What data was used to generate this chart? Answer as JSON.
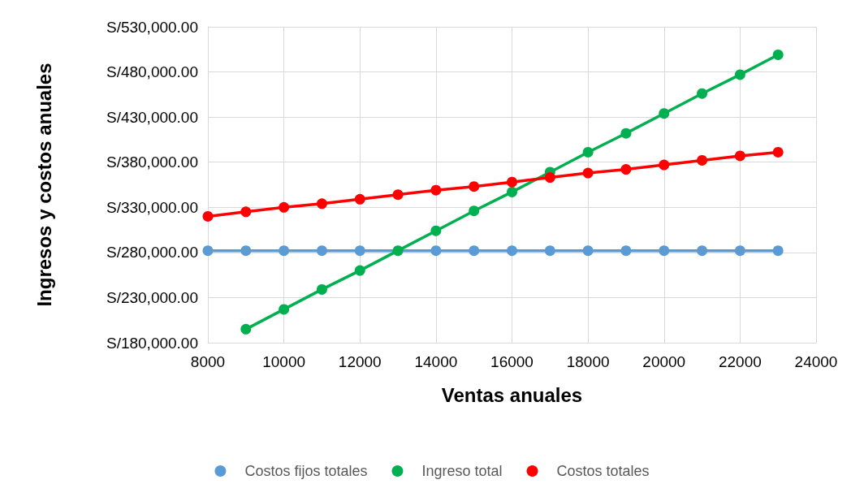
{
  "chart_data": {
    "type": "line",
    "xlabel": "Ventas anuales",
    "ylabel": "Ingresos y costos anuales",
    "x": [
      8000,
      9000,
      10000,
      11000,
      12000,
      13000,
      14000,
      15000,
      16000,
      17000,
      18000,
      19000,
      20000,
      21000,
      22000,
      23000
    ],
    "series": [
      {
        "name": "Costos fijos totales",
        "color": "#5b9bd5",
        "values": [
          282000,
          282000,
          282000,
          282000,
          282000,
          null,
          282000,
          282000,
          282000,
          282000,
          282000,
          282000,
          282000,
          282000,
          282000,
          282000
        ]
      },
      {
        "name": "Ingreso total",
        "color": "#00b050",
        "values": [
          null,
          195000,
          217000,
          239000,
          260000,
          282000,
          304000,
          326000,
          347000,
          369000,
          391000,
          412000,
          434000,
          456000,
          477000,
          499000
        ]
      },
      {
        "name": "Costos totales",
        "color": "#ff0000",
        "values": [
          320000,
          325000,
          330000,
          334000,
          339000,
          344000,
          349000,
          353000,
          358000,
          363000,
          368000,
          372000,
          377000,
          382000,
          387000,
          391000
        ]
      }
    ],
    "xlim": [
      8000,
      24000
    ],
    "xticks": [
      8000,
      10000,
      12000,
      14000,
      16000,
      18000,
      20000,
      22000,
      24000
    ],
    "ylim": [
      180000,
      530000
    ],
    "yticks": [
      {
        "value": 180000,
        "label": "S/180,000.00"
      },
      {
        "value": 230000,
        "label": "S/230,000.00"
      },
      {
        "value": 280000,
        "label": "S/280,000.00"
      },
      {
        "value": 330000,
        "label": "S/330,000.00"
      },
      {
        "value": 380000,
        "label": "S/380,000.00"
      },
      {
        "value": 430000,
        "label": "S/430,000.00"
      },
      {
        "value": 480000,
        "label": "S/480,000.00"
      },
      {
        "value": 530000,
        "label": "S/530,000.00"
      }
    ],
    "grid": true,
    "legend": "bottom",
    "marker": "circle",
    "line_style": "solid"
  }
}
